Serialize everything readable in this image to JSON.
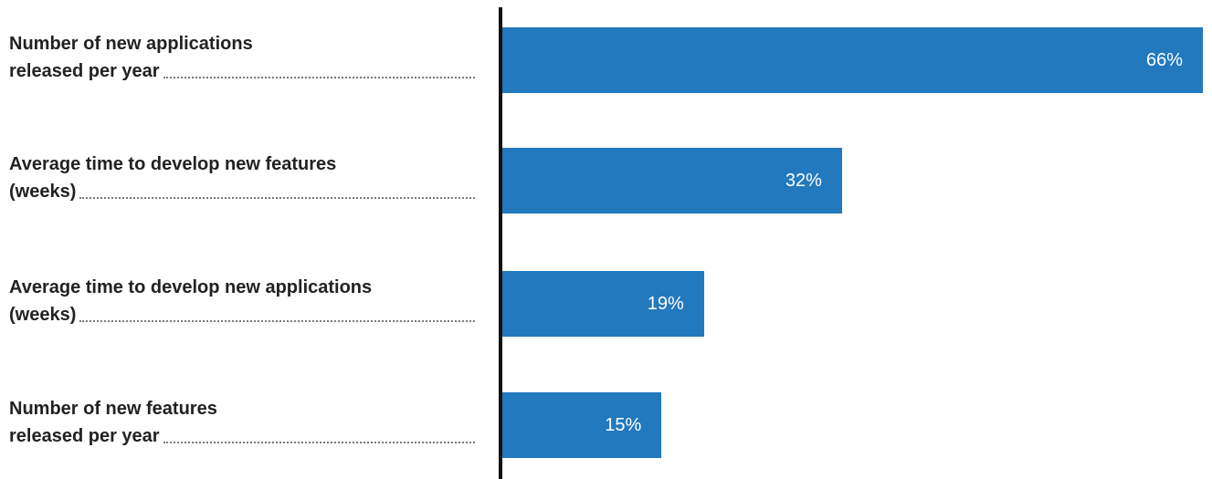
{
  "chart_data": {
    "type": "bar",
    "orientation": "horizontal",
    "categories": [
      [
        "Number of new applications",
        "released per year"
      ],
      [
        "Average time to develop new features",
        "(weeks)"
      ],
      [
        "Average time to develop new applications",
        "(weeks)"
      ],
      [
        "Number of new features",
        "released per year"
      ]
    ],
    "values": [
      66,
      32,
      19,
      15
    ],
    "value_labels": [
      "66%",
      "32%",
      "19%",
      "15%"
    ],
    "xlim": [
      0,
      66
    ],
    "grid": false,
    "legend": "none",
    "bar_color": "#2279be"
  }
}
